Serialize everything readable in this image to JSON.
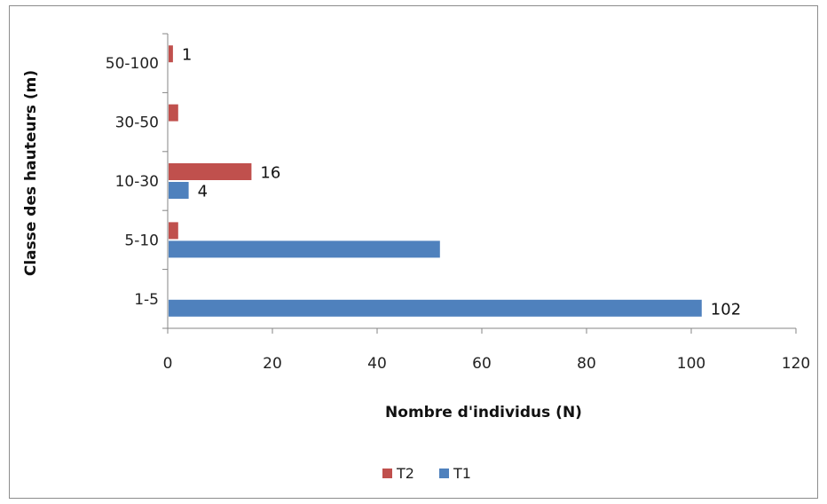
{
  "chart_data": {
    "type": "bar",
    "orientation": "horizontal",
    "title": "",
    "xlabel": "Nombre d'individus (N)",
    "ylabel": "Classe des hauteurs (m)",
    "categories": [
      "1-5",
      "5-10",
      "10-30",
      "30-50",
      "50-100"
    ],
    "series": [
      {
        "name": "T1",
        "color": "#4f81bd",
        "values": [
          102,
          52,
          4,
          0,
          0
        ],
        "labels": [
          "102",
          "",
          "4",
          "",
          ""
        ]
      },
      {
        "name": "T2",
        "color": "#c0504d",
        "values": [
          0,
          2,
          16,
          2,
          1
        ],
        "labels": [
          "",
          "",
          "16",
          "",
          "1"
        ]
      }
    ],
    "xlim": [
      0,
      120
    ],
    "xticks": [
      "0",
      "20",
      "40",
      "60",
      "80",
      "100",
      "120"
    ],
    "grid": false,
    "legend": {
      "position": "bottom",
      "order": [
        "T2",
        "T1"
      ]
    }
  }
}
